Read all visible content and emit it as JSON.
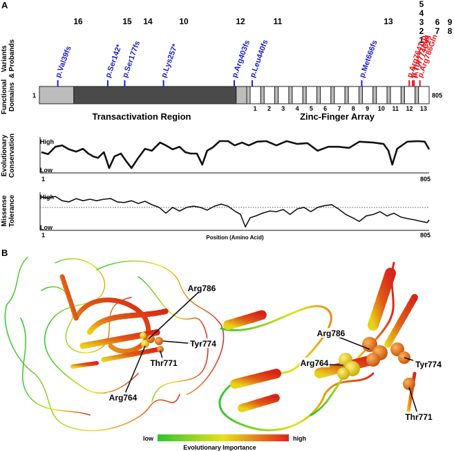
{
  "panel_a": {
    "label": "A",
    "row_labels": [
      [
        "Variants",
        "& Probands"
      ],
      [
        "Functional",
        "Domains"
      ],
      [
        "Evolutionary",
        "Conservation"
      ],
      [
        "Missense",
        "Tolerance"
      ]
    ],
    "xlim": [
      1,
      805
    ],
    "variants": [
      {
        "label": "p.Val39fs",
        "position": 39,
        "color": "#1c1ccf"
      },
      {
        "label": "p.Ser142*",
        "position": 142,
        "color": "#1c1ccf"
      },
      {
        "label": "p.Ser177fs",
        "position": 177,
        "color": "#1c1ccf"
      },
      {
        "label": "p.Lys257*",
        "position": 257,
        "color": "#1c1ccf"
      },
      {
        "label": "p.Arg403fs",
        "position": 403,
        "color": "#1c1ccf"
      },
      {
        "label": "p.Leu440fs",
        "position": 440,
        "color": "#1c1ccf"
      },
      {
        "label": "p.Met666fs",
        "position": 666,
        "color": "#1c1ccf"
      },
      {
        "label": "p.Arg764Trp",
        "position": 764,
        "color": "#e3141b"
      },
      {
        "label": "p.Thr771Met",
        "position": 771,
        "color": "#e3141b"
      },
      {
        "label": "p.Tyr774Cys",
        "position": 774,
        "color": "#e3141b"
      },
      {
        "label": "p.Arg786Gln",
        "position": 786,
        "color": "#e3141b"
      }
    ],
    "proband_groups": [
      [
        "16"
      ],
      [
        "15"
      ],
      [
        "14"
      ],
      [
        "10"
      ],
      [
        "12"
      ],
      [
        "11"
      ],
      [
        "13"
      ],
      [
        "5",
        "4",
        "3",
        "2",
        "1"
      ],
      [
        "6",
        "7"
      ],
      [
        "9",
        "8"
      ]
    ],
    "regions": [
      "Transactivation Region",
      "Zinc-Finger Array"
    ],
    "zinc_fingers": [
      "1",
      "2",
      "3",
      "4",
      "5",
      "6",
      "7",
      "8",
      "9",
      "10",
      "11",
      "12",
      "13"
    ],
    "conservation": {
      "x": [
        5,
        19,
        34,
        48,
        62,
        77,
        91,
        102,
        112,
        122,
        134,
        145,
        156,
        169,
        179,
        191,
        205,
        219,
        233,
        250,
        262,
        276,
        290,
        302,
        313,
        326,
        337,
        347,
        359,
        373,
        390,
        404,
        419,
        433,
        450,
        469,
        490,
        511,
        533,
        554,
        575,
        597,
        618,
        640,
        661,
        690,
        711,
        721,
        729,
        739,
        760,
        782,
        796,
        805
      ],
      "values": [
        0.61,
        0.54,
        0.8,
        0.85,
        0.71,
        0.63,
        0.73,
        0.56,
        0.46,
        0.41,
        0.61,
        0.05,
        0.46,
        0.56,
        0.32,
        0.05,
        0.41,
        0.73,
        0.66,
        0.95,
        0.85,
        0.71,
        0.8,
        0.61,
        0.56,
        0.56,
        0.17,
        0.66,
        0.78,
        1.0,
        1.0,
        0.85,
        0.95,
        0.85,
        0.98,
        1.0,
        0.85,
        1.0,
        0.9,
        0.93,
        0.66,
        0.8,
        0.8,
        0.76,
        0.98,
        0.95,
        0.9,
        0.66,
        0.17,
        0.73,
        0.98,
        1.0,
        0.98,
        0.71
      ],
      "ylim": [
        0,
        1
      ],
      "yticks": [
        {
          "value": 1,
          "label": "High"
        },
        {
          "value": 0,
          "label": "Low"
        }
      ]
    },
    "tolerance": {
      "x": [
        5,
        19,
        34,
        48,
        62,
        77,
        91,
        105,
        119,
        134,
        148,
        162,
        176,
        191,
        205,
        219,
        233,
        248,
        262,
        276,
        290,
        305,
        319,
        333,
        347,
        362,
        376,
        390,
        404,
        416,
        426,
        436,
        447,
        461,
        476,
        490,
        504,
        518,
        533,
        547,
        561,
        575,
        590,
        604,
        618,
        633,
        647,
        661,
        675,
        690,
        704,
        718,
        732,
        747,
        761,
        775,
        789,
        801,
        805
      ],
      "values": [
        0.98,
        0.95,
        1.0,
        0.86,
        0.82,
        0.93,
        0.86,
        0.91,
        0.86,
        0.91,
        0.93,
        0.82,
        0.8,
        0.86,
        0.77,
        0.84,
        0.73,
        0.64,
        0.45,
        0.64,
        0.52,
        0.64,
        0.68,
        0.64,
        0.55,
        0.68,
        0.75,
        0.68,
        0.52,
        0.41,
        0,
        0.3,
        0.36,
        0.45,
        0.52,
        0.5,
        0.57,
        0.41,
        0.59,
        0.64,
        0.5,
        0.64,
        0.7,
        0.73,
        0.59,
        0.41,
        0.3,
        0.18,
        0.36,
        0.41,
        0.5,
        0.36,
        0.45,
        0.32,
        0.27,
        0.23,
        0.18,
        0.14,
        0.23
      ],
      "reference_line": 0.64,
      "ylim": [
        0,
        1
      ],
      "yticks": [
        {
          "value": 1,
          "label": "High"
        },
        {
          "value": 0,
          "label": "Low"
        }
      ]
    },
    "x_axis_label": "Position (Amino Acid)"
  },
  "panel_b": {
    "label": "B",
    "left_residues": [
      "Arg786",
      "Tyr774",
      "Thr771",
      "Arg764"
    ],
    "right_residues": [
      "Arg786",
      "Arg764",
      "Tyr774",
      "Thr771"
    ],
    "colorbar": {
      "low": "low",
      "high": "high",
      "title": "Evolutionary Importance"
    }
  }
}
